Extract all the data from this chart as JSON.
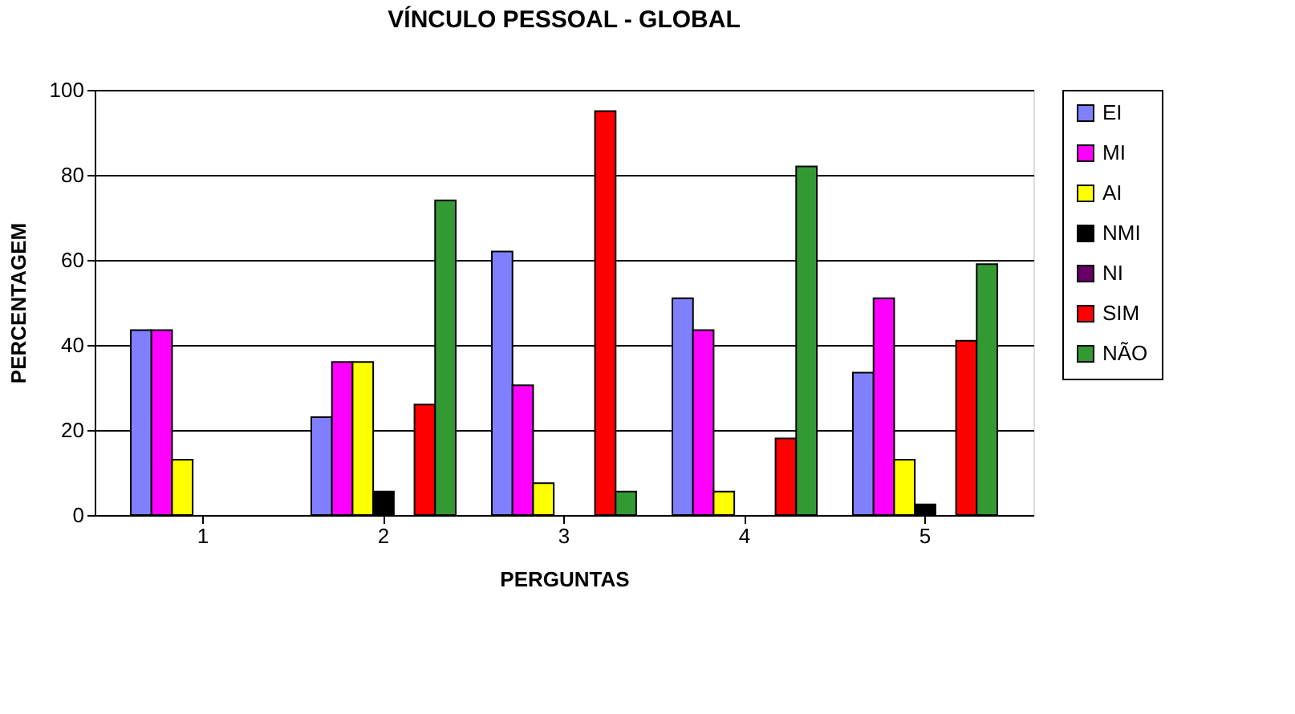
{
  "chart_data": {
    "type": "bar",
    "title": "VÍNCULO PESSOAL - GLOBAL",
    "xlabel": "PERGUNTAS",
    "ylabel": "PERCENTAGEM",
    "categories": [
      "1",
      "2",
      "3",
      "4",
      "5"
    ],
    "series": [
      {
        "name": "EI",
        "color": "#8080ff",
        "values": [
          43.5,
          23,
          62,
          51,
          33.5
        ]
      },
      {
        "name": "MI",
        "color": "#ff00ff",
        "values": [
          43.5,
          36,
          30.5,
          43.5,
          51
        ]
      },
      {
        "name": "AI",
        "color": "#ffff00",
        "values": [
          13,
          36,
          7.5,
          5.5,
          13
        ]
      },
      {
        "name": "NMI",
        "color": "#000000",
        "values": [
          null,
          5.5,
          null,
          null,
          2.5
        ]
      },
      {
        "name": "NI",
        "color": "#660066",
        "values": [
          null,
          null,
          null,
          null,
          null
        ]
      },
      {
        "name": "SIM",
        "color": "#ff0000",
        "values": [
          null,
          26,
          95,
          18,
          41
        ]
      },
      {
        "name": "NÃO",
        "color": "#339933",
        "values": [
          null,
          74,
          5.5,
          82,
          59
        ]
      }
    ],
    "ylim": [
      0,
      100
    ],
    "yticks": [
      0,
      20,
      40,
      60,
      80,
      100
    ],
    "grid": "y",
    "legend": "right"
  }
}
